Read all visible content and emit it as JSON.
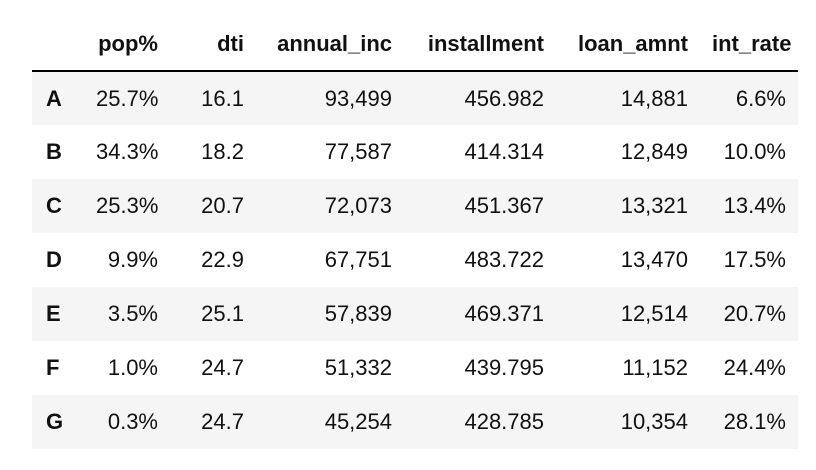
{
  "table": {
    "columns": {
      "index": "",
      "pop": "pop%",
      "dti": "dti",
      "annual_inc": "annual_inc",
      "installment": "installment",
      "loan_amnt": "loan_amnt",
      "int_rate": "int_rate"
    },
    "rows": [
      {
        "grade": "A",
        "pop": "25.7%",
        "dti": "16.1",
        "annual_inc": "93,499",
        "installment": "456.982",
        "loan_amnt": "14,881",
        "int_rate": "6.6%"
      },
      {
        "grade": "B",
        "pop": "34.3%",
        "dti": "18.2",
        "annual_inc": "77,587",
        "installment": "414.314",
        "loan_amnt": "12,849",
        "int_rate": "10.0%"
      },
      {
        "grade": "C",
        "pop": "25.3%",
        "dti": "20.7",
        "annual_inc": "72,073",
        "installment": "451.367",
        "loan_amnt": "13,321",
        "int_rate": "13.4%"
      },
      {
        "grade": "D",
        "pop": "9.9%",
        "dti": "22.9",
        "annual_inc": "67,751",
        "installment": "483.722",
        "loan_amnt": "13,470",
        "int_rate": "17.5%"
      },
      {
        "grade": "E",
        "pop": "3.5%",
        "dti": "25.1",
        "annual_inc": "57,839",
        "installment": "469.371",
        "loan_amnt": "12,514",
        "int_rate": "20.7%"
      },
      {
        "grade": "F",
        "pop": "1.0%",
        "dti": "24.7",
        "annual_inc": "51,332",
        "installment": "439.795",
        "loan_amnt": "11,152",
        "int_rate": "24.4%"
      },
      {
        "grade": "G",
        "pop": "0.3%",
        "dti": "24.7",
        "annual_inc": "45,254",
        "installment": "428.785",
        "loan_amnt": "10,354",
        "int_rate": "28.1%"
      }
    ]
  }
}
